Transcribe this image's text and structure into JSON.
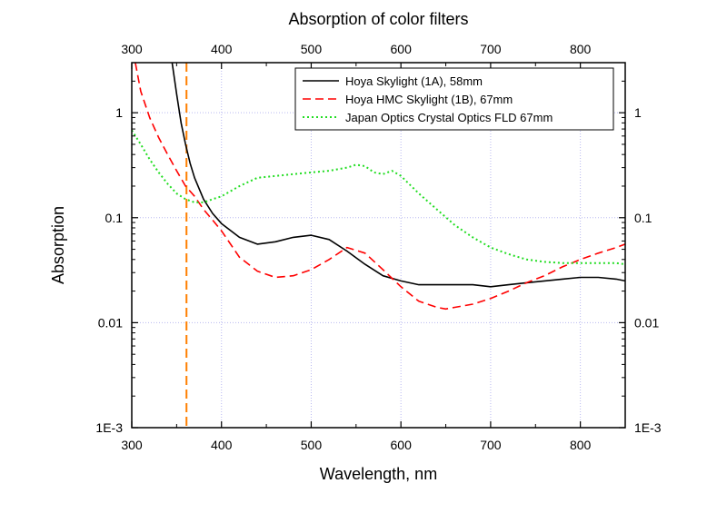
{
  "chart_data": {
    "type": "line",
    "title": "Absorption of color filters",
    "xlabel": "Wavelength, nm",
    "ylabel": "Absorption",
    "xlim": [
      300,
      850
    ],
    "ylim": [
      0.001,
      3
    ],
    "y_scale": "log",
    "grid": true,
    "legend_position": "top-right",
    "x_ticks": [
      "300",
      "400",
      "500",
      "600",
      "700",
      "800"
    ],
    "x_tick_values": [
      300,
      400,
      500,
      600,
      700,
      800
    ],
    "y_ticks": [
      "1E-3",
      "0.01",
      "0.1",
      "1"
    ],
    "y_tick_values": [
      0.001,
      0.01,
      0.1,
      1
    ],
    "vertical_marker": {
      "x": 361,
      "color": "#ff7f00"
    },
    "series": [
      {
        "name": "Hoya Skylight (1A), 58mm",
        "color": "#000000",
        "dash": "solid",
        "x": [
          345,
          350,
          355,
          360,
          365,
          370,
          380,
          390,
          400,
          420,
          440,
          460,
          480,
          500,
          520,
          540,
          560,
          580,
          600,
          620,
          640,
          660,
          680,
          700,
          720,
          740,
          760,
          780,
          800,
          820,
          840,
          850
        ],
        "y": [
          3,
          1.5,
          0.8,
          0.5,
          0.33,
          0.24,
          0.15,
          0.11,
          0.088,
          0.065,
          0.056,
          0.059,
          0.065,
          0.068,
          0.062,
          0.048,
          0.036,
          0.028,
          0.025,
          0.023,
          0.023,
          0.023,
          0.023,
          0.022,
          0.023,
          0.024,
          0.025,
          0.026,
          0.027,
          0.027,
          0.026,
          0.025
        ]
      },
      {
        "name": "Hoya HMC Skylight (1B), 67mm",
        "color": "#ff0000",
        "dash": "dashed",
        "x": [
          304,
          310,
          320,
          330,
          340,
          350,
          360,
          370,
          380,
          390,
          400,
          420,
          440,
          460,
          480,
          500,
          520,
          540,
          560,
          580,
          600,
          620,
          640,
          650,
          660,
          680,
          700,
          720,
          740,
          760,
          780,
          800,
          820,
          840,
          850
        ],
        "y": [
          3,
          1.6,
          0.9,
          0.58,
          0.4,
          0.28,
          0.2,
          0.16,
          0.12,
          0.095,
          0.075,
          0.042,
          0.031,
          0.027,
          0.028,
          0.032,
          0.04,
          0.052,
          0.046,
          0.032,
          0.022,
          0.016,
          0.014,
          0.0135,
          0.014,
          0.015,
          0.017,
          0.02,
          0.024,
          0.028,
          0.034,
          0.04,
          0.046,
          0.052,
          0.056
        ]
      },
      {
        "name": "Japan Optics Crystal Optics FLD 67mm",
        "color": "#22dd22",
        "dash": "dotted",
        "x": [
          300,
          310,
          320,
          330,
          340,
          350,
          360,
          370,
          380,
          390,
          400,
          420,
          440,
          460,
          480,
          500,
          520,
          540,
          550,
          560,
          570,
          580,
          590,
          600,
          620,
          640,
          660,
          680,
          700,
          720,
          740,
          760,
          780,
          800,
          820,
          840,
          850
        ],
        "y": [
          0.68,
          0.5,
          0.36,
          0.27,
          0.21,
          0.17,
          0.15,
          0.14,
          0.14,
          0.15,
          0.16,
          0.2,
          0.24,
          0.25,
          0.26,
          0.27,
          0.28,
          0.3,
          0.32,
          0.31,
          0.27,
          0.26,
          0.28,
          0.25,
          0.17,
          0.12,
          0.085,
          0.065,
          0.052,
          0.045,
          0.04,
          0.038,
          0.037,
          0.037,
          0.037,
          0.037,
          0.036
        ]
      }
    ]
  }
}
